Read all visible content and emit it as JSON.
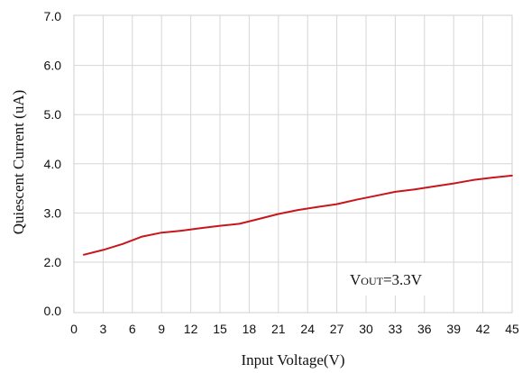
{
  "chart_data": {
    "type": "line",
    "xlabel": "Input Voltage(V)",
    "ylabel": "Quiescent Current (uA)",
    "x_ticks": [
      "0",
      "3",
      "6",
      "9",
      "12",
      "15",
      "18",
      "21",
      "24",
      "27",
      "30",
      "33",
      "36",
      "39",
      "42",
      "45"
    ],
    "y_ticks": [
      "0.0",
      "2.0",
      "3.0",
      "4.0",
      "5.0",
      "6.0",
      "7.0"
    ],
    "xlim": [
      0,
      45
    ],
    "y_scale_note": "broken axis: 0.0 to 2.0 compressed, then linear 2.0-7.0",
    "grid": true,
    "series": [
      {
        "color": "#c8161d",
        "x": [
          1,
          3,
          5,
          7,
          9,
          11,
          13,
          15,
          17,
          19,
          21,
          23,
          25,
          27,
          29,
          31,
          33,
          35,
          37,
          39,
          41,
          43,
          45
        ],
        "y": [
          2.15,
          2.25,
          2.37,
          2.52,
          2.6,
          2.64,
          2.69,
          2.74,
          2.78,
          2.88,
          2.98,
          3.06,
          3.12,
          3.18,
          3.27,
          3.35,
          3.43,
          3.48,
          3.54,
          3.6,
          3.67,
          3.72,
          3.76
        ]
      }
    ],
    "annotation": {
      "main": "V",
      "sub": "OUT",
      "rest": "=3.3V"
    }
  }
}
